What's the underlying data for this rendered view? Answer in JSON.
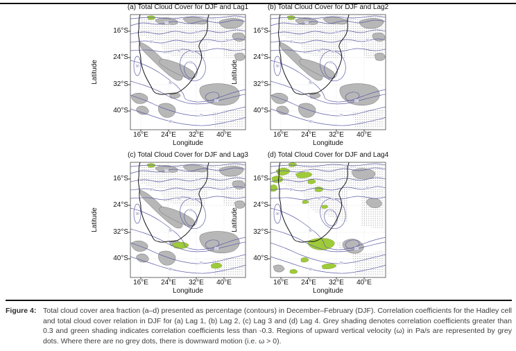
{
  "figure": {
    "panels": [
      {
        "id": "a",
        "title": "(a) Total Cloud Cover for DJF and Lag1"
      },
      {
        "id": "b",
        "title": "(b) Total Cloud Cover for DJF and Lag2"
      },
      {
        "id": "c",
        "title": "(c) Total Cloud Cover for DJF and Lag3"
      },
      {
        "id": "d",
        "title": "(d) Total Cloud Cover for DJF and Lag4"
      }
    ],
    "axes": {
      "x_label": "Longitude",
      "y_label": "Latitude",
      "x_ticks": [
        "16°E",
        "24°E",
        "32°E",
        "40°E"
      ],
      "y_ticks": [
        "16°S",
        "24°S",
        "32°S",
        "40°S"
      ]
    },
    "contour_levels": [
      "30",
      "40",
      "50",
      "60",
      "70",
      "80"
    ],
    "legend": {
      "contours": "total cloud cover area fraction (%)",
      "grey_shading": "correlation coefficients greater than 0.3",
      "green_shading": "correlation coefficients less than -0.3",
      "grey_dots": "upward vertical velocity (ω) in Pa/s"
    },
    "colors": {
      "contour": "#5d5da6",
      "grey_shading": "#b7b7b7",
      "grey_outline": "#6e6e6e",
      "green_shading": "#9fca3a",
      "coastline": "#141414",
      "stipple_dot": "#9b9b9b"
    }
  },
  "caption": {
    "label": "Figure 4:",
    "text": "Total cloud cover area fraction (a–d) presented as percentage (contours) in December–February (DJF). Correlation coefficients for the Hadley cell and total cloud cover relation in DJF for (a) Lag 1, (b) Lag 2, (c) Lag 3 and (d) Lag 4. Grey shading denotes correlation coefficients greater than 0.3 and green shading indicates correlation coefficients less than -0.3. Regions of upward vertical velocity (ω) in Pa/s are represented by grey dots. Where there are no grey dots, there is downward motion (i.e. ω > 0)."
  }
}
